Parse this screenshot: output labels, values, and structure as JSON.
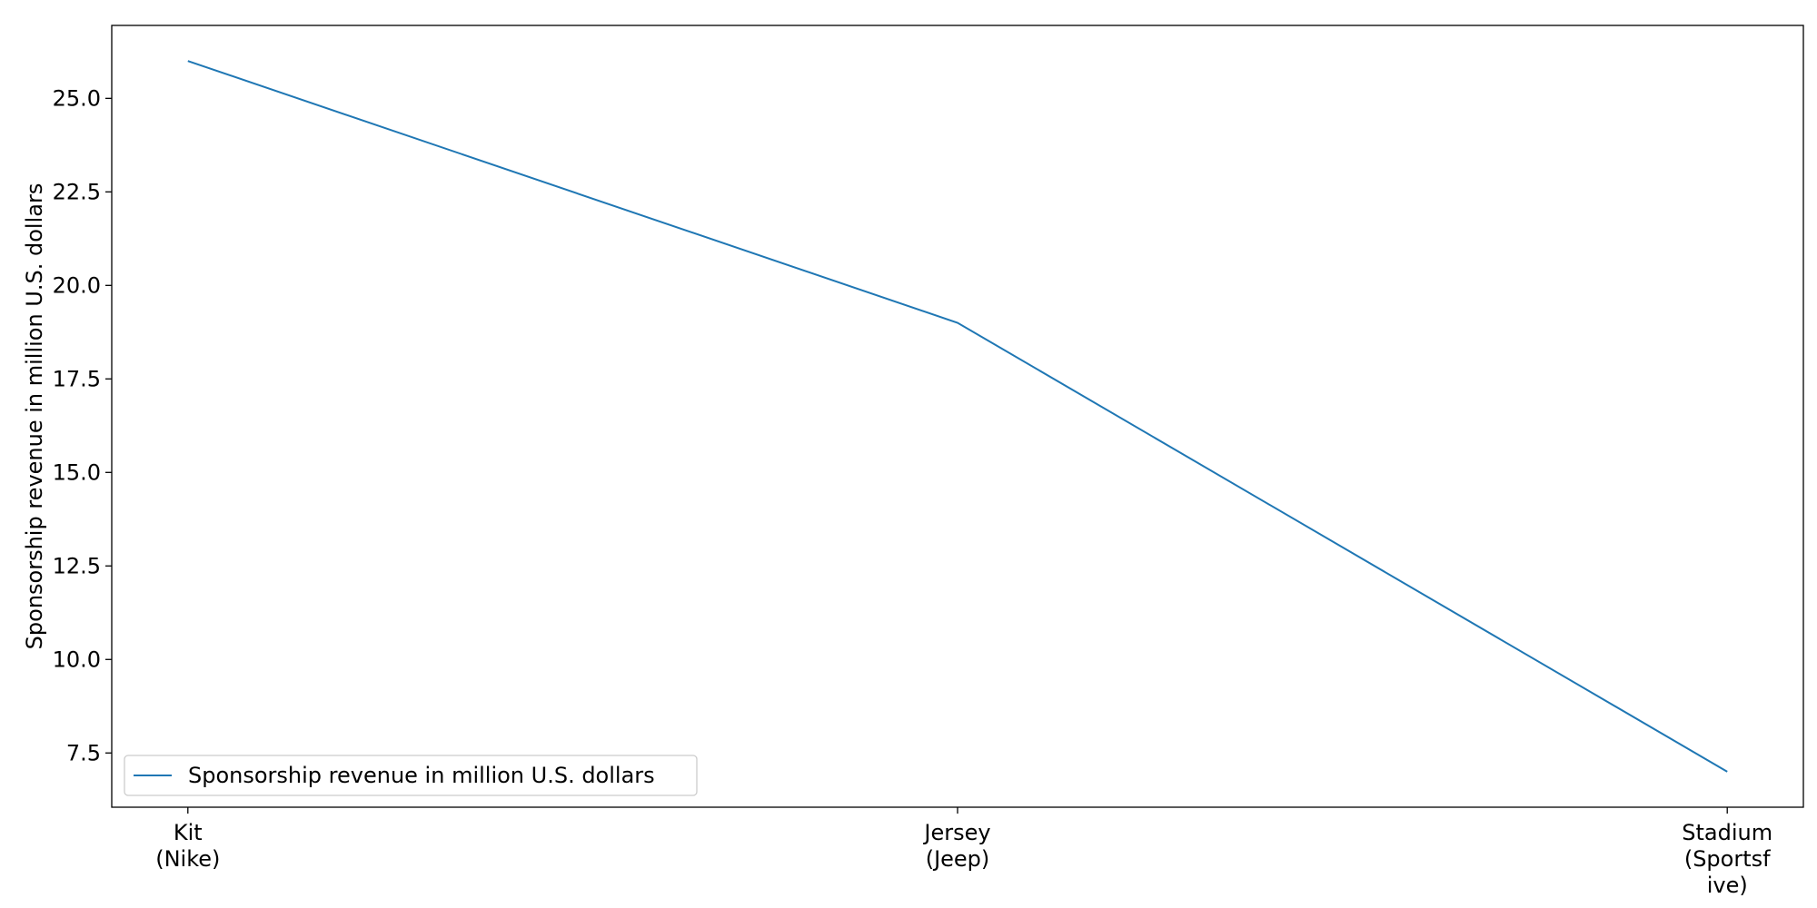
{
  "chart_data": {
    "type": "line",
    "title": "",
    "xlabel": "",
    "ylabel": "Sponsorship revenue in million U.S. dollars",
    "categories": [
      "Kit\n(Nike)",
      "Jersey\n(Jeep)",
      "Stadium\n(Sportsf\nive)"
    ],
    "series": [
      {
        "name": "Sponsorship revenue in million U.S. dollars",
        "values": [
          26,
          19,
          7
        ],
        "color": "#1f77b4"
      }
    ],
    "ylim": [
      6.05,
      26.95
    ],
    "yticks": [
      7.5,
      10.0,
      12.5,
      15.0,
      17.5,
      20.0,
      22.5,
      25.0
    ],
    "ytick_labels": [
      "7.5",
      "10.0",
      "12.5",
      "15.0",
      "17.5",
      "20.0",
      "22.5",
      "25.0"
    ],
    "grid": false,
    "legend": {
      "position": "lower-left"
    }
  }
}
